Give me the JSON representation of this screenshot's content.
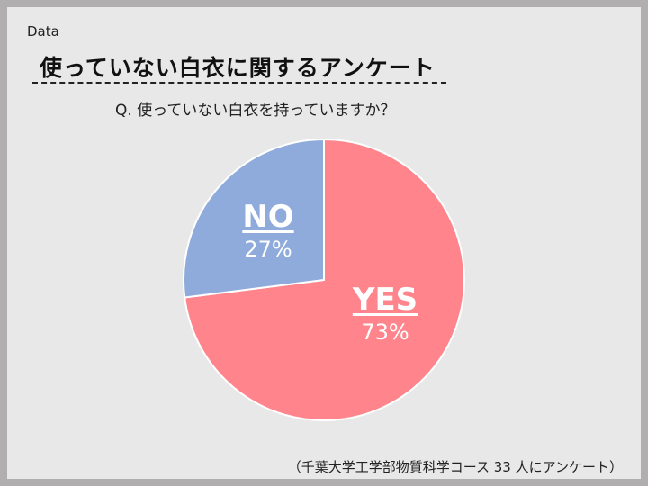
{
  "header": {
    "section_label": "Data",
    "title": "使っていない白衣に関するアンケート",
    "question": "Q. 使っていない白衣を持っていますか？"
  },
  "source_note": "（千葉大学工学部物質科学コース 33 人にアンケート）",
  "colors": {
    "yes": "#ff848c",
    "no": "#8fabdc",
    "background": "#e8e8e8",
    "frame": "#b0aeae"
  },
  "chart_data": {
    "type": "pie",
    "title": "",
    "slices": [
      {
        "label": "YES",
        "value": 73,
        "value_label": "73%"
      },
      {
        "label": "NO",
        "value": 27,
        "value_label": "27%"
      }
    ],
    "start": "12 o'clock",
    "direction": "clockwise"
  }
}
